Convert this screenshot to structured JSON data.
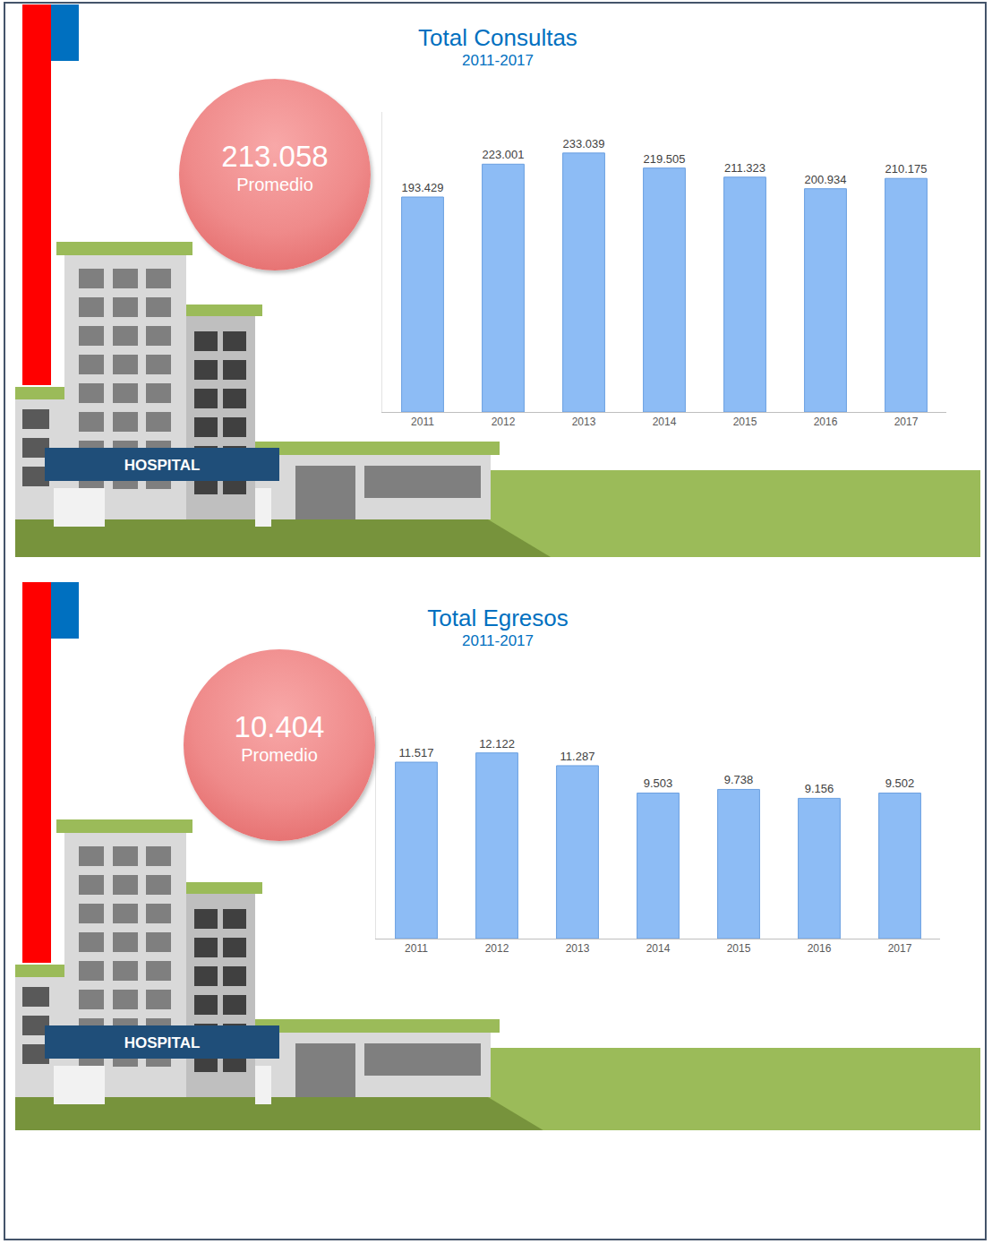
{
  "chart_data": [
    {
      "type": "bar",
      "title": "Total Consultas",
      "subtitle": "2011-2017",
      "categories": [
        "2011",
        "2012",
        "2013",
        "2014",
        "2015",
        "2016",
        "2017"
      ],
      "values": [
        193429,
        223001,
        233039,
        219505,
        211323,
        200934,
        210175
      ],
      "value_labels": [
        "193.429",
        "223.001",
        "233.039",
        "219.505",
        "211.323",
        "200.934",
        "210.175"
      ],
      "color": "#8dbcf5",
      "ylim": [
        0,
        270000
      ],
      "yticks": [],
      "grid": false,
      "data_labels": true,
      "tick_labels": "x",
      "average": {
        "label": "213.058",
        "text": "Promedio"
      }
    },
    {
      "type": "bar",
      "title": "Total Egresos",
      "subtitle": "2011-2017",
      "categories": [
        "2011",
        "2012",
        "2013",
        "2014",
        "2015",
        "2016",
        "2017"
      ],
      "values": [
        11517,
        12122,
        11287,
        9503,
        9738,
        9156,
        9502
      ],
      "value_labels": [
        "11.517",
        "12.122",
        "11.287",
        "9.503",
        "9.738",
        "9.156",
        "9.502"
      ],
      "color": "#8dbcf5",
      "ylim": [
        0,
        14500
      ],
      "yticks": [],
      "grid": false,
      "data_labels": true,
      "tick_labels": "x",
      "average": {
        "label": "10.404",
        "text": "Promedio"
      }
    }
  ],
  "illustration": {
    "sign": "HOSPITAL"
  }
}
